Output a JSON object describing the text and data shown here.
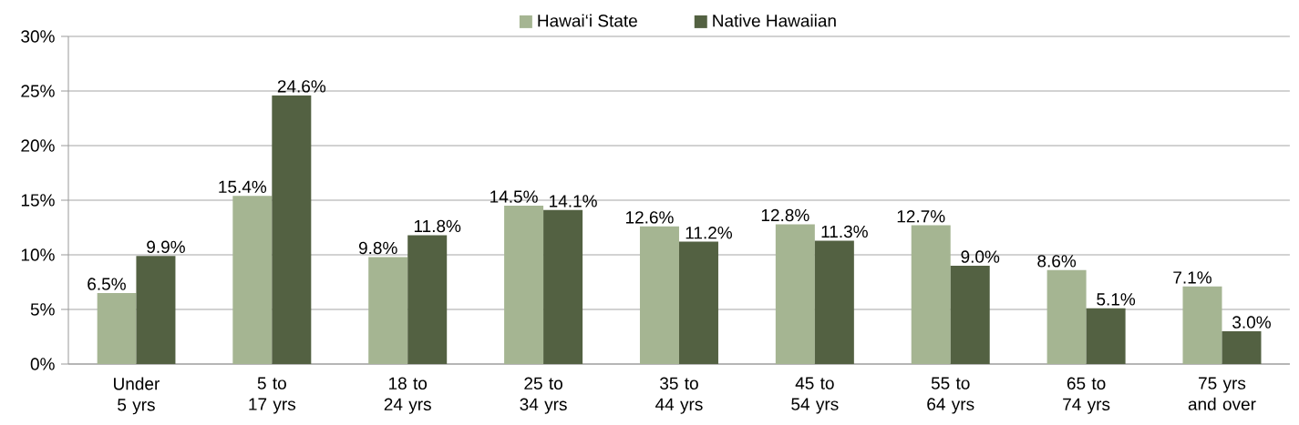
{
  "chart_data": {
    "type": "bar",
    "categories": [
      "Under 5 yrs",
      "5 to 17 yrs",
      "18 to 24 yrs",
      "25 to 34 yrs",
      "35 to 44 yrs",
      "45 to 54 yrs",
      "55 to 64 yrs",
      "65 to 74 yrs",
      "75 yrs and over"
    ],
    "series": [
      {
        "name": "Hawai‘i State",
        "color": "#a5b592",
        "values": [
          6.5,
          15.4,
          9.8,
          14.5,
          12.6,
          12.8,
          12.7,
          8.6,
          7.1
        ],
        "value_labels": [
          "6.5%",
          "15.4%",
          "9.8%",
          "14.5%",
          "12.6%",
          "12.8%",
          "12.7%",
          "8.6%",
          "7.1%"
        ]
      },
      {
        "name": "Native Hawaiian",
        "color": "#536142",
        "values": [
          9.9,
          24.6,
          11.8,
          14.1,
          11.2,
          11.3,
          9.0,
          5.1,
          3.0
        ],
        "value_labels": [
          "9.9%",
          "24.6%",
          "11.8%",
          "14.1%",
          "11.2%",
          "11.3%",
          "9.0%",
          "5.1%",
          "3.0%"
        ]
      }
    ],
    "ylim": [
      0,
      30
    ],
    "yticks": [
      {
        "value": 0,
        "label": "0%"
      },
      {
        "value": 5,
        "label": "5%"
      },
      {
        "value": 10,
        "label": "10%"
      },
      {
        "value": 15,
        "label": "15%"
      },
      {
        "value": 20,
        "label": "20%"
      },
      {
        "value": 25,
        "label": "25%"
      },
      {
        "value": 30,
        "label": "30%"
      }
    ],
    "grid": "y",
    "legend": "top"
  }
}
